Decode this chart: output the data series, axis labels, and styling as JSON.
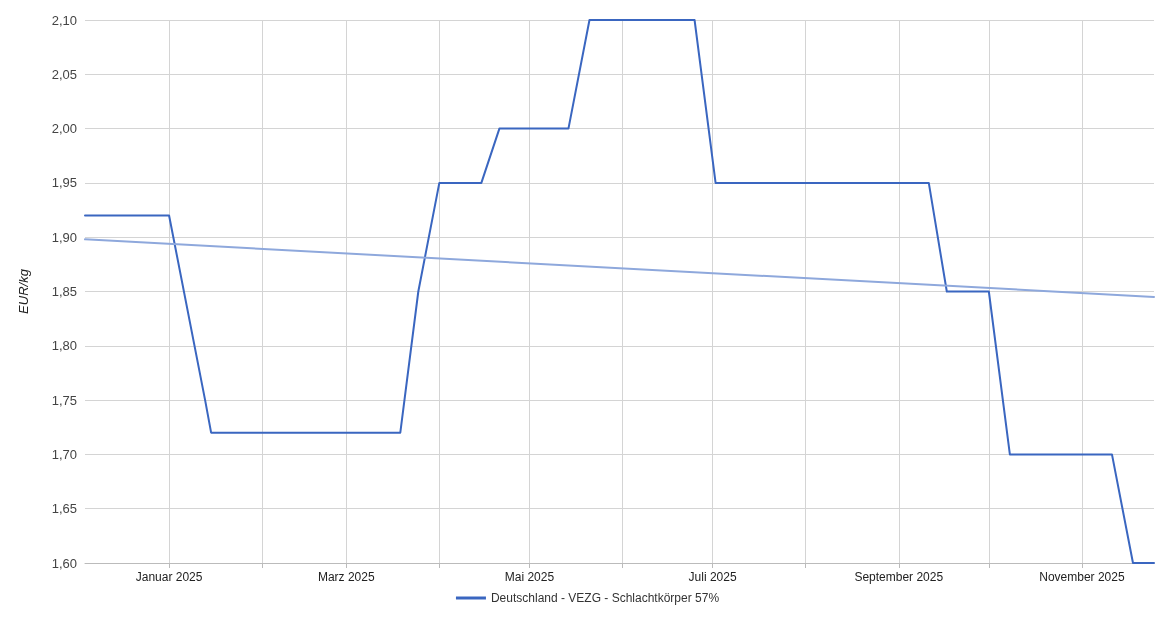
{
  "chart_data": {
    "type": "line",
    "ylabel": "EUR/kg",
    "xlim": [
      "2024-12-04",
      "2025-11-25"
    ],
    "ylim": [
      1.6,
      2.1
    ],
    "xticks": [
      {
        "value": "2025-01-01",
        "label": "Januar 2025"
      },
      {
        "value": "2025-02-01",
        "label": null
      },
      {
        "value": "2025-03-01",
        "label": "Marz 2025"
      },
      {
        "value": "2025-04-01",
        "label": null
      },
      {
        "value": "2025-05-01",
        "label": "Mai 2025"
      },
      {
        "value": "2025-06-01",
        "label": null
      },
      {
        "value": "2025-07-01",
        "label": "Juli 2025"
      },
      {
        "value": "2025-08-01",
        "label": null
      },
      {
        "value": "2025-09-01",
        "label": "September 2025"
      },
      {
        "value": "2025-10-01",
        "label": null
      },
      {
        "value": "2025-11-01",
        "label": "November 2025"
      }
    ],
    "yticks": [
      {
        "value": 1.6,
        "label": "1,60"
      },
      {
        "value": 1.65,
        "label": "1,65"
      },
      {
        "value": 1.7,
        "label": "1,70"
      },
      {
        "value": 1.75,
        "label": "1,75"
      },
      {
        "value": 1.8,
        "label": "1,80"
      },
      {
        "value": 1.85,
        "label": "1,85"
      },
      {
        "value": 1.9,
        "label": "1,90"
      },
      {
        "value": 1.95,
        "label": "1,95"
      },
      {
        "value": 2.0,
        "label": "2,00"
      },
      {
        "value": 2.05,
        "label": "2,05"
      },
      {
        "value": 2.1,
        "label": "2,10"
      }
    ],
    "grid": true,
    "legend": "bottom",
    "marker": "none",
    "line_style": "solid",
    "series": [
      {
        "name": "Deutschland - VEZG - Schlachtkörper 57%",
        "color": "#3a66c0",
        "x": [
          "2024-12-04",
          "2025-01-01",
          "2025-01-13",
          "2025-01-15",
          "2025-03-19",
          "2025-03-25",
          "2025-04-01",
          "2025-04-15",
          "2025-04-21",
          "2025-05-14",
          "2025-05-21",
          "2025-06-25",
          "2025-07-02",
          "2025-09-11",
          "2025-09-17",
          "2025-10-01",
          "2025-10-08",
          "2025-11-11",
          "2025-11-18",
          "2025-11-25"
        ],
        "values": [
          1.92,
          1.92,
          1.75,
          1.72,
          1.72,
          1.85,
          1.95,
          1.95,
          2.0,
          2.0,
          2.1,
          2.1,
          1.95,
          1.95,
          1.85,
          1.85,
          1.7,
          1.7,
          1.6,
          1.6
        ]
      },
      {
        "type": "line",
        "color": "#8ea8dc",
        "x": [
          "2024-12-04",
          "2025-11-25"
        ],
        "values": [
          1.898,
          1.845
        ]
      }
    ]
  }
}
